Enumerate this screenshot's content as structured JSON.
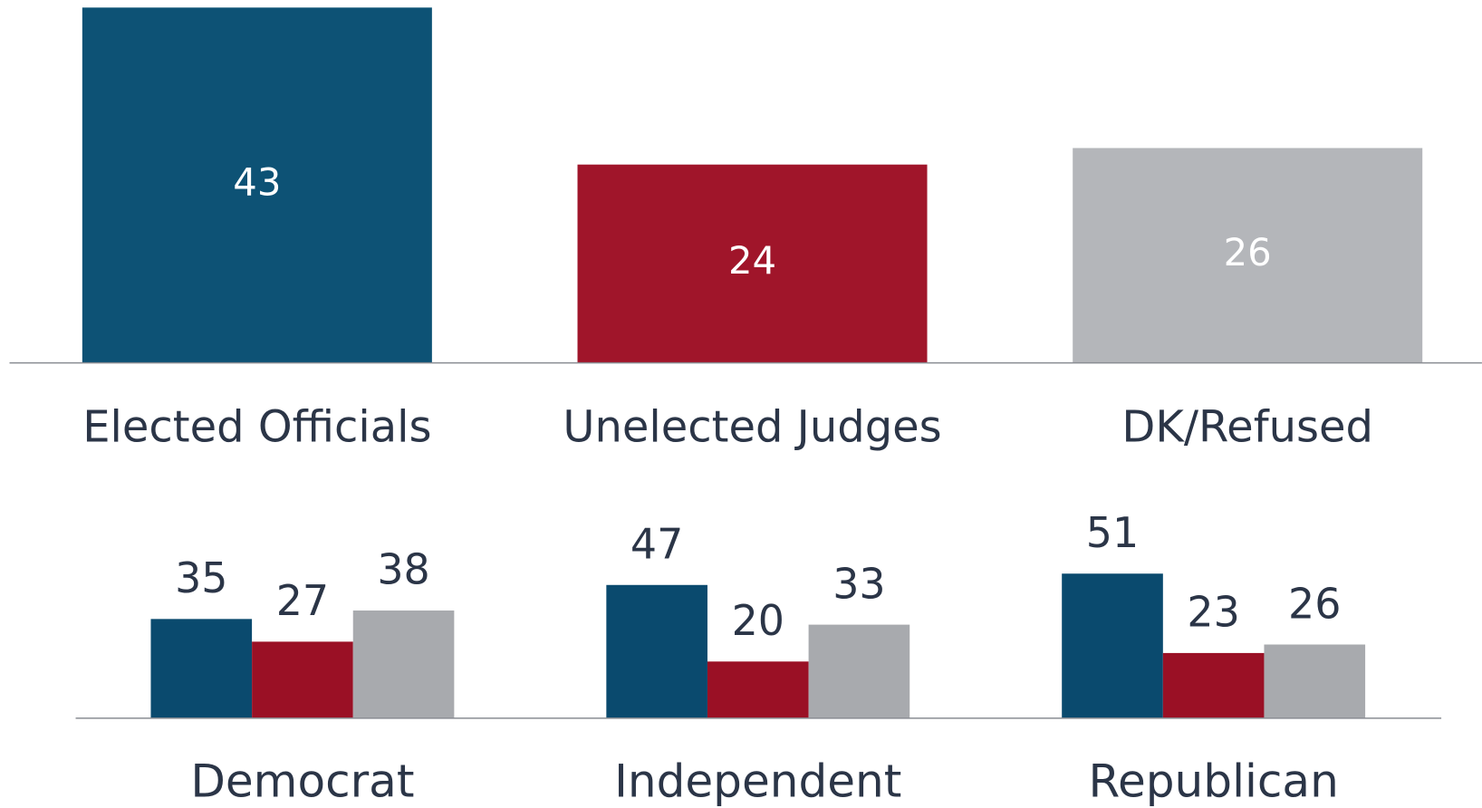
{
  "chart_data": [
    {
      "type": "bar",
      "categories": [
        "Elected Officials",
        "Unelected Judges",
        "DK/Refused"
      ],
      "values": [
        43,
        24,
        26
      ],
      "colors": [
        "#0d5275",
        "#a0152a",
        "#b4b6ba"
      ],
      "ylim": [
        0,
        43
      ]
    },
    {
      "type": "grouped_bar",
      "categories": [
        "Democrat",
        "Independent",
        "Republican"
      ],
      "series": [
        {
          "color": "#0a4a6e",
          "values": [
            35,
            47,
            51
          ]
        },
        {
          "color": "#9a1025",
          "values": [
            27,
            20,
            23
          ]
        },
        {
          "color": "#a8aaae",
          "values": [
            38,
            33,
            26
          ]
        }
      ],
      "ylim": [
        0,
        60
      ]
    }
  ]
}
